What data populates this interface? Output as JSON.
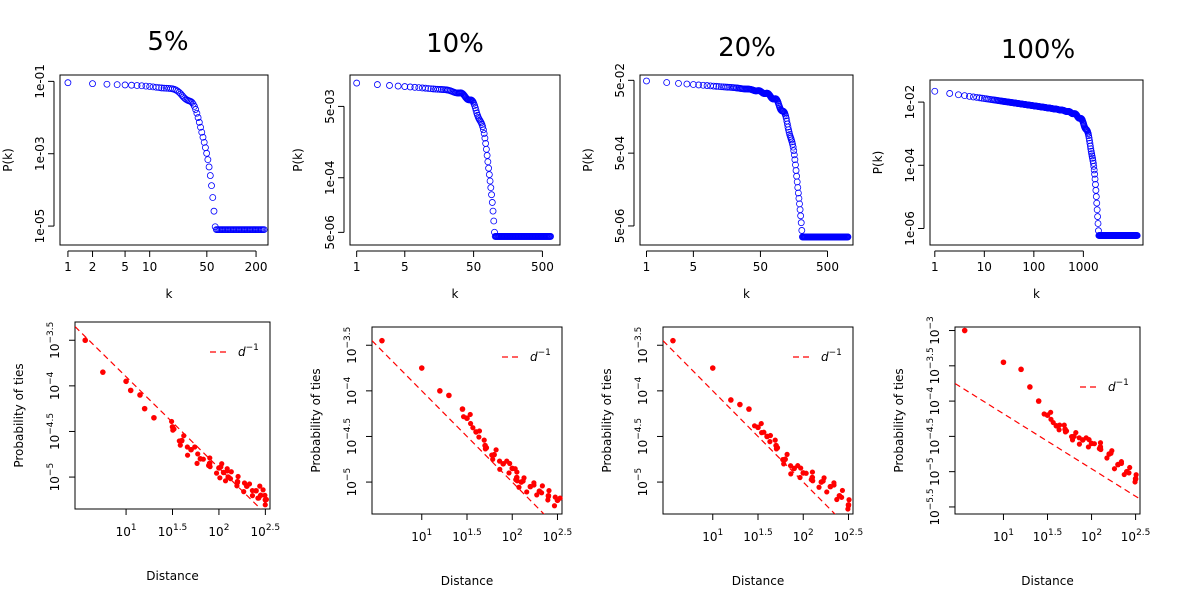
{
  "chart_data": [
    {
      "title": "5%",
      "type": "scatter",
      "xscale": "log",
      "yscale": "log",
      "xlabel": "k",
      "ylabel": "P(k)",
      "xlim": [
        0.8,
        280
      ],
      "ylim": [
        3e-06,
        0.15
      ],
      "xticks": [
        1,
        2,
        5,
        10,
        50,
        200
      ],
      "xtick_labels": [
        "1",
        "2",
        "5",
        "10",
        "50",
        "200"
      ],
      "yticks": [
        1e-05,
        0.001,
        0.1
      ],
      "ytick_labels": [
        "1e-05",
        "1e-03",
        "1e-01"
      ],
      "series": [
        {
          "name": "P(k)",
          "color": "#0000ff",
          "marker": "open-circle",
          "curve": {
            "kmax": 250,
            "p0": 0.092,
            "a": 0.09,
            "kc": 32,
            "b": 3.2,
            "floor": 8e-06,
            "nlin": 25,
            "ratio": 1.035,
            "scatter": 0.08
          }
        }
      ]
    },
    {
      "title": "10%",
      "type": "scatter",
      "xscale": "log",
      "yscale": "log",
      "xlabel": "k",
      "ylabel": "P(k)",
      "xlim": [
        0.8,
        900
      ],
      "ylim": [
        2.5e-06,
        0.028
      ],
      "xticks": [
        1,
        5,
        50,
        500
      ],
      "xtick_labels": [
        "1",
        "5",
        "50",
        "500"
      ],
      "yticks": [
        5e-06,
        0.0001,
        0.005
      ],
      "ytick_labels": [
        "5e-06",
        "1e-04",
        "5e-03"
      ],
      "series": [
        {
          "name": "P(k)",
          "color": "#0000ff",
          "marker": "open-circle",
          "curve": {
            "kmax": 650,
            "p0": 0.018,
            "a": 0.12,
            "kc": 55,
            "b": 3.4,
            "floor": 4e-06,
            "nlin": 30,
            "ratio": 1.025,
            "scatter": 0.07
          }
        }
      ]
    },
    {
      "title": "20%",
      "type": "scatter",
      "xscale": "log",
      "yscale": "log",
      "xlabel": "k",
      "ylabel": "P(k)",
      "xlim": [
        0.8,
        1200
      ],
      "ylim": [
        1.5e-06,
        0.07
      ],
      "xticks": [
        1,
        5,
        50,
        500
      ],
      "xtick_labels": [
        "1",
        "5",
        "50",
        "500"
      ],
      "yticks": [
        5e-06,
        0.0005,
        0.05
      ],
      "ytick_labels": [
        "5e-06",
        "5e-04",
        "5e-02"
      ],
      "series": [
        {
          "name": "P(k)",
          "color": "#0000ff",
          "marker": "open-circle",
          "curve": {
            "kmax": 1000,
            "p0": 0.048,
            "a": 0.14,
            "kc": 100,
            "b": 3.0,
            "floor": 2.5e-06,
            "nlin": 40,
            "ratio": 1.02,
            "scatter": 0.07
          }
        }
      ]
    },
    {
      "title": "100%",
      "type": "scatter",
      "xscale": "log",
      "yscale": "log",
      "xlabel": "k",
      "ylabel": "P(k)",
      "xlim": [
        0.8,
        16000
      ],
      "ylim": [
        3e-07,
        0.05
      ],
      "xticks": [
        1,
        10,
        100,
        1000
      ],
      "xtick_labels": [
        "1",
        "10",
        "100",
        "1000"
      ],
      "yticks": [
        1e-06,
        0.0001,
        0.01
      ],
      "ytick_labels": [
        "1e-06",
        "1e-04",
        "1e-02"
      ],
      "series": [
        {
          "name": "P(k)",
          "color": "#0000ff",
          "marker": "open-circle",
          "curve": {
            "kmax": 12000,
            "p0": 0.022,
            "a": 0.23,
            "kc": 1100,
            "b": 3.5,
            "floor": 6e-07,
            "nlin": 45,
            "ratio": 1.02,
            "scatter": 0.06
          }
        }
      ]
    },
    {
      "type": "scatter",
      "xscale": "log",
      "yscale": "log",
      "xlabel": "Distance",
      "ylabel": "Probability of ties",
      "xlim_exp": [
        0.45,
        2.55
      ],
      "ylim_exp": [
        -5.35,
        -3.3
      ],
      "xticks_exp": [
        1,
        1.5,
        2,
        2.5
      ],
      "xtick_labels": [
        "1",
        "1.5",
        "2",
        "2.5"
      ],
      "yticks_exp": [
        -5,
        -4.5,
        -4,
        -3.5
      ],
      "ytick_labels": [
        "-5",
        "-4.5",
        "-4",
        "-3.5"
      ],
      "legend": "d",
      "legend_exp": "−1",
      "fit": {
        "label": "d^-1",
        "style": "dashed",
        "color": "#ff0000",
        "y_at_x0": -3.35,
        "slope": -1.0
      },
      "series": [
        {
          "name": "Probability of ties",
          "color": "#ff0000",
          "marker": "filled-circle",
          "points": [
            [
              0.56,
              -3.5
            ],
            [
              0.75,
              -3.85
            ],
            [
              1.0,
              -3.95
            ],
            [
              1.05,
              -4.05
            ],
            [
              1.15,
              -4.1
            ],
            [
              1.2,
              -4.25
            ],
            [
              1.3,
              -4.35
            ],
            [
              1.5,
              -4.45
            ],
            [
              1.6,
              -4.6
            ],
            [
              1.7,
              -4.7
            ],
            [
              1.8,
              -4.8
            ],
            [
              1.9,
              -4.85
            ],
            [
              2.0,
              -4.9
            ],
            [
              2.05,
              -4.95
            ],
            [
              2.1,
              -5.0
            ],
            [
              2.2,
              -5.05
            ],
            [
              2.3,
              -5.1
            ],
            [
              2.4,
              -5.15
            ],
            [
              2.45,
              -5.2
            ],
            [
              2.5,
              -5.25
            ]
          ]
        }
      ]
    },
    {
      "type": "scatter",
      "xscale": "log",
      "yscale": "log",
      "xlabel": "Distance",
      "ylabel": "Probability of ties",
      "xlim_exp": [
        0.45,
        2.55
      ],
      "ylim_exp": [
        -5.35,
        -3.3
      ],
      "xticks_exp": [
        1,
        1.5,
        2,
        2.5
      ],
      "xtick_labels": [
        "1",
        "1.5",
        "2",
        "2.5"
      ],
      "yticks_exp": [
        -5,
        -4.5,
        -4,
        -3.5
      ],
      "ytick_labels": [
        "-5",
        "-4.5",
        "-4",
        "-3.5"
      ],
      "legend": "d",
      "legend_exp": "−1",
      "fit": {
        "label": "d^-1",
        "style": "dashed",
        "color": "#ff0000",
        "y_at_x0": -3.45,
        "slope": -1.0
      },
      "series": [
        {
          "name": "Probability of ties",
          "color": "#ff0000",
          "marker": "filled-circle",
          "points": [
            [
              0.56,
              -3.45
            ],
            [
              1.0,
              -3.75
            ],
            [
              1.2,
              -4.0
            ],
            [
              1.3,
              -4.05
            ],
            [
              1.45,
              -4.2
            ],
            [
              1.5,
              -4.3
            ],
            [
              1.6,
              -4.45
            ],
            [
              1.7,
              -4.6
            ],
            [
              1.8,
              -4.7
            ],
            [
              1.9,
              -4.8
            ],
            [
              2.0,
              -4.85
            ],
            [
              2.05,
              -4.95
            ],
            [
              2.1,
              -5.0
            ],
            [
              2.2,
              -5.05
            ],
            [
              2.3,
              -5.1
            ],
            [
              2.4,
              -5.15
            ],
            [
              2.5,
              -5.2
            ]
          ]
        }
      ]
    },
    {
      "type": "scatter",
      "xscale": "log",
      "yscale": "log",
      "xlabel": "Distance",
      "ylabel": "Probability of ties",
      "xlim_exp": [
        0.45,
        2.55
      ],
      "ylim_exp": [
        -5.35,
        -3.3
      ],
      "xticks_exp": [
        1,
        1.5,
        2,
        2.5
      ],
      "xtick_labels": [
        "1",
        "1.5",
        "2",
        "2.5"
      ],
      "yticks_exp": [
        -5,
        -4.5,
        -4,
        -3.5
      ],
      "ytick_labels": [
        "-5",
        "-4.5",
        "-4",
        "-3.5"
      ],
      "legend": "d",
      "legend_exp": "−1",
      "fit": {
        "label": "d^-1",
        "style": "dashed",
        "color": "#ff0000",
        "y_at_x0": -3.45,
        "slope": -1.0
      },
      "series": [
        {
          "name": "Probability of ties",
          "color": "#ff0000",
          "marker": "filled-circle",
          "points": [
            [
              0.56,
              -3.45
            ],
            [
              1.0,
              -3.75
            ],
            [
              1.2,
              -4.1
            ],
            [
              1.3,
              -4.15
            ],
            [
              1.4,
              -4.2
            ],
            [
              1.5,
              -4.4
            ],
            [
              1.6,
              -4.5
            ],
            [
              1.7,
              -4.6
            ],
            [
              1.8,
              -4.75
            ],
            [
              1.9,
              -4.85
            ],
            [
              2.0,
              -4.9
            ],
            [
              2.1,
              -4.95
            ],
            [
              2.2,
              -5.0
            ],
            [
              2.3,
              -5.05
            ],
            [
              2.4,
              -5.15
            ],
            [
              2.5,
              -5.25
            ]
          ]
        }
      ]
    },
    {
      "type": "scatter",
      "xscale": "log",
      "yscale": "log",
      "xlabel": "Distance",
      "ylabel": "Probability of ties",
      "xlim_exp": [
        0.45,
        2.55
      ],
      "ylim_exp": [
        -5.6,
        -2.95
      ],
      "xticks_exp": [
        1,
        1.5,
        2,
        2.5
      ],
      "xtick_labels": [
        "1",
        "1.5",
        "2",
        "2.5"
      ],
      "yticks_exp": [
        -5.5,
        -5,
        -4.5,
        -4,
        -3.5,
        -3
      ],
      "ytick_labels": [
        "-5.5",
        "-5",
        "-4.5",
        "-4",
        "-3.5",
        "-3"
      ],
      "legend": "d",
      "legend_exp": "−1",
      "fit": {
        "label": "d^-1",
        "style": "dashed",
        "color": "#ff0000",
        "y_at_x0": -3.75,
        "slope": -0.78
      },
      "series": [
        {
          "name": "Probability of ties",
          "color": "#ff0000",
          "marker": "filled-circle",
          "points": [
            [
              0.56,
              -3.0
            ],
            [
              1.0,
              -3.45
            ],
            [
              1.2,
              -3.55
            ],
            [
              1.3,
              -3.8
            ],
            [
              1.4,
              -4.0
            ],
            [
              1.5,
              -4.2
            ],
            [
              1.6,
              -4.35
            ],
            [
              1.7,
              -4.4
            ],
            [
              1.8,
              -4.5
            ],
            [
              1.9,
              -4.55
            ],
            [
              2.0,
              -4.6
            ],
            [
              2.1,
              -4.65
            ],
            [
              2.2,
              -4.75
            ],
            [
              2.3,
              -4.9
            ],
            [
              2.4,
              -5.0
            ],
            [
              2.5,
              -5.1
            ]
          ]
        }
      ]
    }
  ]
}
